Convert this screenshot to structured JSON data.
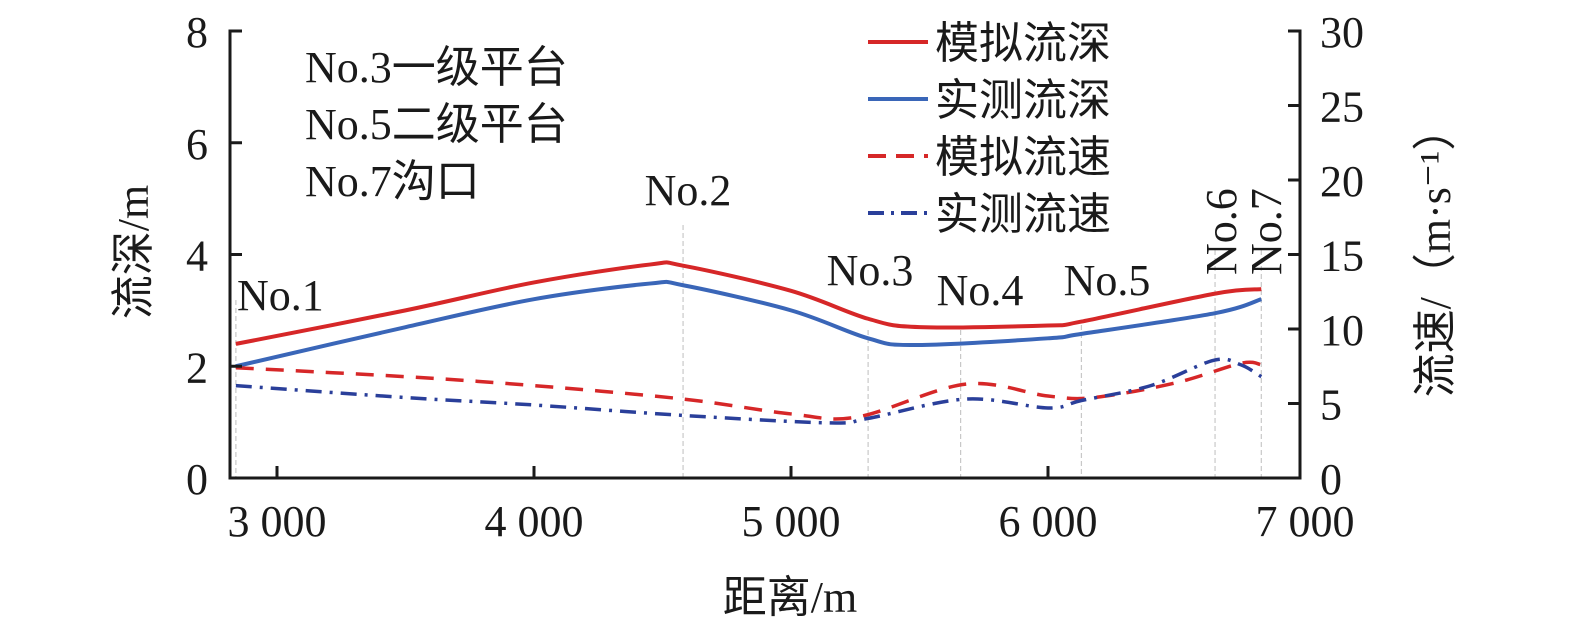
{
  "chart_data": {
    "type": "line",
    "xlabel": "距离/m",
    "ylabel": "流深/m",
    "y2label": "流速/（m·s⁻¹）",
    "xlim": [
      2825,
      6980
    ],
    "ylim": [
      0,
      8
    ],
    "y2lim": [
      0,
      30
    ],
    "xticks": [
      3000,
      4000,
      5000,
      6000,
      7000
    ],
    "xtick_labels": [
      "3 000",
      "4 000",
      "5 000",
      "6 000",
      "7 000"
    ],
    "yticks": [
      0,
      2,
      4,
      6,
      8
    ],
    "ytick_labels": [
      "0",
      "2",
      "4",
      "6",
      "8"
    ],
    "y2ticks": [
      0,
      5,
      10,
      15,
      20,
      25,
      30
    ],
    "y2tick_labels": [
      "0",
      "5",
      "10",
      "15",
      "20",
      "25",
      "30"
    ],
    "grid": false,
    "legend_position": "top-right",
    "notes": [
      "No.3一级平台",
      "No.5二级平台",
      "No.7沟口"
    ],
    "stations": [
      {
        "label": "No.1",
        "x": 2840
      },
      {
        "label": "No.2",
        "x": 4580
      },
      {
        "label": "No.3",
        "x": 5300
      },
      {
        "label": "No.4",
        "x": 5660
      },
      {
        "label": "No.5",
        "x": 6130
      },
      {
        "label": "No.6",
        "x": 6650
      },
      {
        "label": "No.7",
        "x": 6830
      }
    ],
    "series": [
      {
        "name": "模拟流深",
        "axis": "left",
        "color": "#d62728",
        "style": "solid",
        "x": [
          2840,
          3500,
          4000,
          4450,
          4580,
          5000,
          5300,
          5500,
          6000,
          6130,
          6650,
          6830
        ],
        "y": [
          2.4,
          3.0,
          3.5,
          3.82,
          3.8,
          3.35,
          2.85,
          2.7,
          2.73,
          2.8,
          3.3,
          3.38
        ]
      },
      {
        "name": "实测流深",
        "axis": "left",
        "color": "#3a66b8",
        "style": "solid",
        "x": [
          2840,
          3500,
          4000,
          4450,
          4580,
          5000,
          5300,
          5480,
          6000,
          6130,
          6650,
          6830
        ],
        "y": [
          2.0,
          2.7,
          3.2,
          3.48,
          3.45,
          3.0,
          2.5,
          2.38,
          2.5,
          2.58,
          2.95,
          3.2
        ]
      },
      {
        "name": "模拟流速",
        "axis": "right",
        "color": "#d62728",
        "style": "dashed",
        "x": [
          2840,
          3500,
          4000,
          4580,
          5000,
          5260,
          5680,
          6000,
          6180,
          6500,
          6750,
          6830
        ],
        "y": [
          7.4,
          6.8,
          6.2,
          5.3,
          4.3,
          4.1,
          6.3,
          5.5,
          5.4,
          6.4,
          7.7,
          7.6
        ]
      },
      {
        "name": "实测流速",
        "axis": "right",
        "color": "#2a3f9a",
        "style": "dashdot",
        "x": [
          2840,
          3500,
          4000,
          4580,
          5150,
          5300,
          5680,
          6000,
          6130,
          6400,
          6645,
          6750,
          6830
        ],
        "y": [
          6.2,
          5.4,
          4.9,
          4.2,
          3.7,
          4.0,
          5.3,
          4.7,
          5.2,
          6.2,
          7.9,
          7.6,
          6.8
        ]
      }
    ]
  }
}
